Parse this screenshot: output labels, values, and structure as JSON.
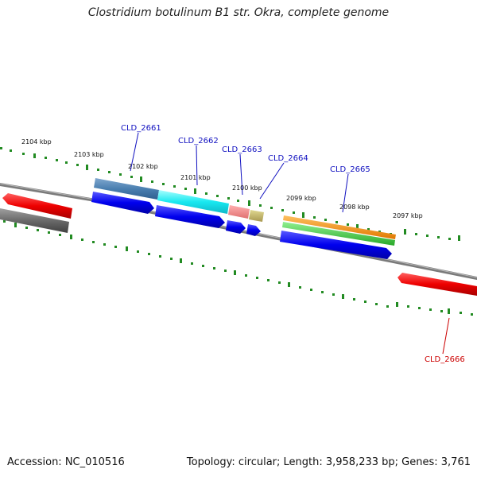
{
  "title": "Clostridium botulinum B1 str. Okra, complete genome",
  "footer": {
    "accession": "Accession: NC_010516",
    "topology": "Topology: circular; Length: 3,958,233 bp; Genes: 3,761"
  },
  "scale_labels": [
    "2104 kbp",
    "2103 kbp",
    "2102 kbp",
    "2101 kbp",
    "2100 kbp",
    "2099 kbp",
    "2098 kbp",
    "2097 kbp"
  ],
  "gene_labels": [
    {
      "text": "CLD_2661",
      "color": "#1010c0"
    },
    {
      "text": "CLD_2662",
      "color": "#1010c0"
    },
    {
      "text": "CLD_2663",
      "color": "#1010c0"
    },
    {
      "text": "CLD_2664",
      "color": "#1010c0"
    },
    {
      "text": "CLD_2665",
      "color": "#1010c0"
    },
    {
      "text": "CLD_2666",
      "color": "#cc0000"
    }
  ],
  "colors": {
    "backbone": "#7a7a7a",
    "tick": "#228b22",
    "cds": "#0000ee",
    "red_gene": "#ee0000",
    "gray_gene": "#666666"
  }
}
